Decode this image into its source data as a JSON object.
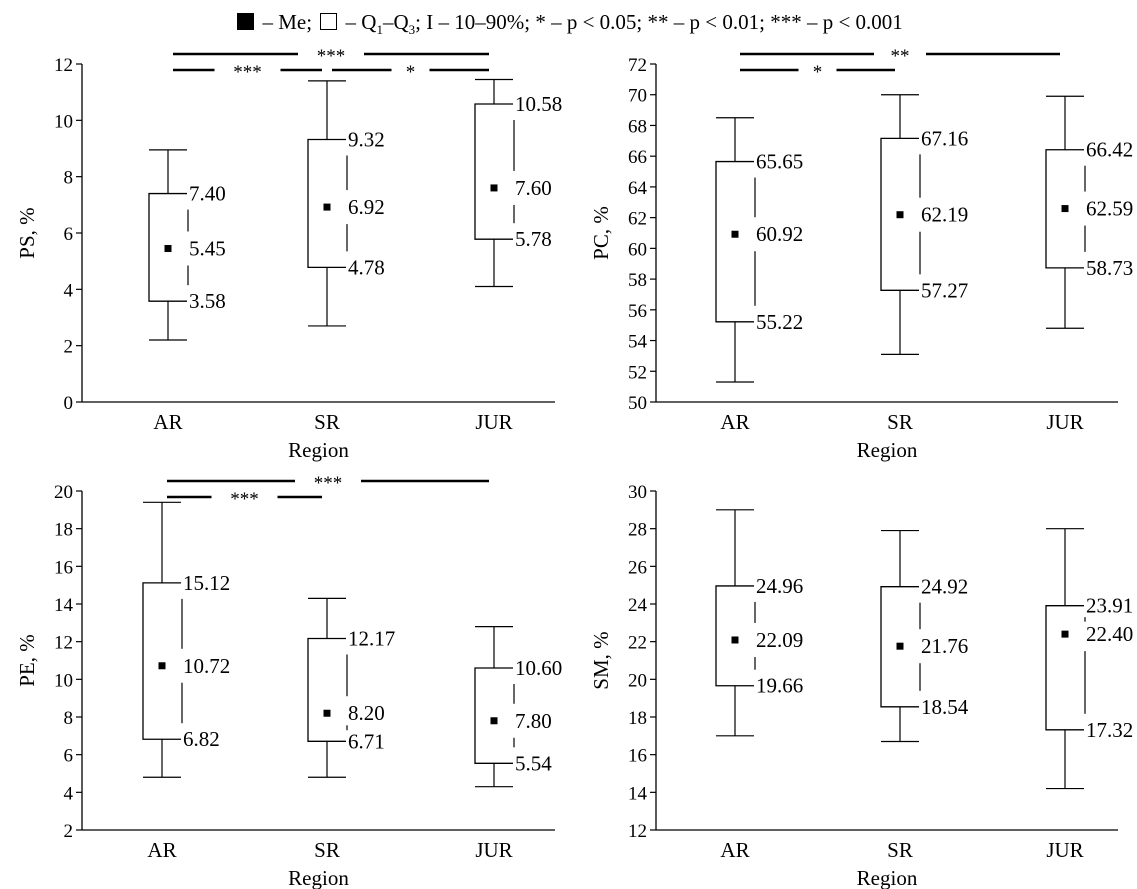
{
  "legend": {
    "median": "– Me;",
    "q_part_a": "– Q",
    "q_sub1": "1",
    "q_part_b": "–Q",
    "q_sub3": "3",
    "q_end": ";",
    "whisker": "I – 10–90%;",
    "p1": "* – p < 0.05;",
    "p2": "** – p < 0.01;",
    "p3": "*** – p < 0.001"
  },
  "chart_data": [
    {
      "type": "box",
      "ylabel": "PS, %",
      "xlabel": "Region",
      "categories": [
        "AR",
        "SR",
        "JUR"
      ],
      "ylim": [
        0,
        12
      ],
      "yticks": [
        0,
        2,
        4,
        6,
        8,
        10,
        12
      ],
      "boxes": [
        {
          "category": "AR",
          "whisker_low": 2.2,
          "q1": 3.58,
          "median": 5.45,
          "q3": 7.4,
          "whisker_high": 8.95,
          "labels": {
            "q1": "3.58",
            "median": "5.45",
            "q3": "7.40"
          }
        },
        {
          "category": "SR",
          "whisker_low": 2.7,
          "q1": 4.78,
          "median": 6.92,
          "q3": 9.32,
          "whisker_high": 11.4,
          "labels": {
            "q1": "4.78",
            "median": "6.92",
            "q3": "9.32"
          }
        },
        {
          "category": "JUR",
          "whisker_low": 4.1,
          "q1": 5.78,
          "median": 7.6,
          "q3": 10.58,
          "whisker_high": 11.45,
          "labels": {
            "q1": "5.78",
            "median": "7.60",
            "q3": "10.58"
          }
        }
      ],
      "significance": [
        {
          "from": "AR",
          "to": "JUR",
          "label": "***",
          "level": 2
        },
        {
          "from": "AR",
          "to": "SR",
          "label": "***",
          "level": 1
        },
        {
          "from": "SR",
          "to": "JUR",
          "label": "*",
          "level": 1
        }
      ]
    },
    {
      "type": "box",
      "ylabel": "PC, %",
      "xlabel": "Region",
      "categories": [
        "AR",
        "SR",
        "JUR"
      ],
      "ylim": [
        50,
        72
      ],
      "yticks": [
        50,
        52,
        54,
        56,
        58,
        60,
        62,
        64,
        66,
        68,
        70,
        72
      ],
      "boxes": [
        {
          "category": "AR",
          "whisker_low": 51.3,
          "q1": 55.22,
          "median": 60.92,
          "q3": 65.65,
          "whisker_high": 68.5,
          "labels": {
            "q1": "55.22",
            "median": "60.92",
            "q3": "65.65"
          }
        },
        {
          "category": "SR",
          "whisker_low": 53.1,
          "q1": 57.27,
          "median": 62.19,
          "q3": 67.16,
          "whisker_high": 70.0,
          "labels": {
            "q1": "57.27",
            "median": "62.19",
            "q3": "67.16"
          }
        },
        {
          "category": "JUR",
          "whisker_low": 54.8,
          "q1": 58.73,
          "median": 62.59,
          "q3": 66.42,
          "whisker_high": 69.9,
          "labels": {
            "q1": "58.73",
            "median": "62.59",
            "q3": "66.42"
          }
        }
      ],
      "significance": [
        {
          "from": "AR",
          "to": "JUR",
          "label": "**",
          "level": 2
        },
        {
          "from": "AR",
          "to": "SR",
          "label": "*",
          "level": 1
        }
      ]
    },
    {
      "type": "box",
      "ylabel": "PE, %",
      "xlabel": "Region",
      "categories": [
        "AR",
        "SR",
        "JUR"
      ],
      "ylim": [
        2,
        20
      ],
      "yticks": [
        2,
        4,
        6,
        8,
        10,
        12,
        14,
        16,
        18,
        20
      ],
      "boxes": [
        {
          "category": "AR",
          "whisker_low": 4.8,
          "q1": 6.82,
          "median": 10.72,
          "q3": 15.12,
          "whisker_high": 19.4,
          "labels": {
            "q1": "6.82",
            "median": "10.72",
            "q3": "15.12"
          }
        },
        {
          "category": "SR",
          "whisker_low": 4.8,
          "q1": 6.71,
          "median": 8.2,
          "q3": 12.17,
          "whisker_high": 14.3,
          "labels": {
            "q1": "6.71",
            "median": "8.20",
            "q3": "12.17"
          }
        },
        {
          "category": "JUR",
          "whisker_low": 4.3,
          "q1": 5.54,
          "median": 7.8,
          "q3": 10.6,
          "whisker_high": 12.8,
          "labels": {
            "q1": "5.54",
            "median": "7.80",
            "q3": "10.60"
          }
        }
      ],
      "significance": [
        {
          "from": "AR",
          "to": "JUR",
          "label": "***",
          "level": 2
        },
        {
          "from": "AR",
          "to": "SR",
          "label": "***",
          "level": 1
        }
      ]
    },
    {
      "type": "box",
      "ylabel": "SM, %",
      "xlabel": "Region",
      "categories": [
        "AR",
        "SR",
        "JUR"
      ],
      "ylim": [
        12,
        30
      ],
      "yticks": [
        12,
        14,
        16,
        18,
        20,
        22,
        24,
        26,
        28,
        30
      ],
      "boxes": [
        {
          "category": "AR",
          "whisker_low": 17.0,
          "q1": 19.66,
          "median": 22.09,
          "q3": 24.96,
          "whisker_high": 29.0,
          "labels": {
            "q1": "19.66",
            "median": "22.09",
            "q3": "24.96"
          }
        },
        {
          "category": "SR",
          "whisker_low": 16.7,
          "q1": 18.54,
          "median": 21.76,
          "q3": 24.92,
          "whisker_high": 27.9,
          "labels": {
            "q1": "18.54",
            "median": "21.76",
            "q3": "24.92"
          }
        },
        {
          "category": "JUR",
          "whisker_low": 14.2,
          "q1": 17.32,
          "median": 22.4,
          "q3": 23.91,
          "whisker_high": 28.0,
          "labels": {
            "q1": "17.32",
            "median": "22.40",
            "q3": "23.91"
          }
        }
      ],
      "significance": []
    }
  ]
}
